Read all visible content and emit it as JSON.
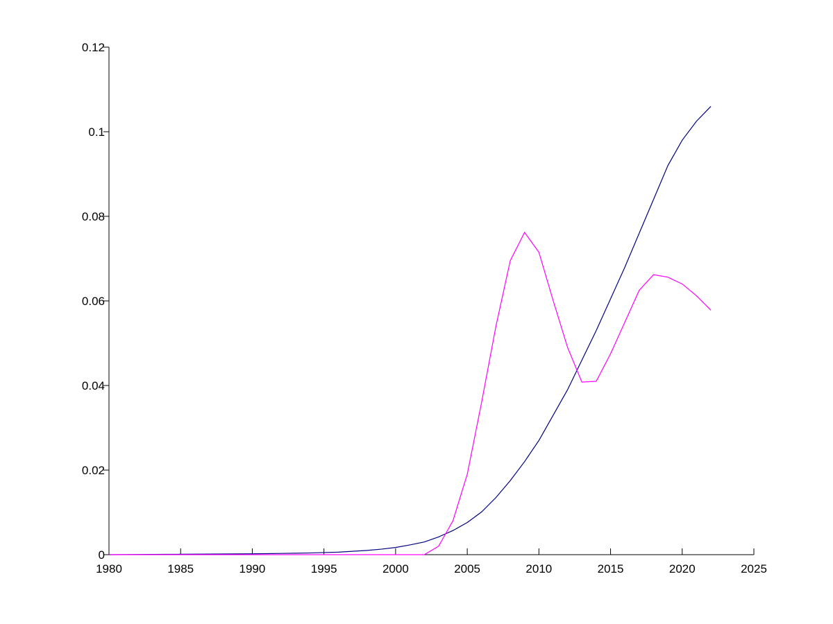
{
  "chart_data": {
    "type": "line",
    "x": [
      1980,
      1981,
      1982,
      1983,
      1984,
      1985,
      1986,
      1987,
      1988,
      1989,
      1990,
      1991,
      1992,
      1993,
      1994,
      1995,
      1996,
      1997,
      1998,
      1999,
      2000,
      2001,
      2002,
      2003,
      2004,
      2005,
      2006,
      2007,
      2008,
      2009,
      2010,
      2011,
      2012,
      2013,
      2014,
      2015,
      2016,
      2017,
      2018,
      2019,
      2020,
      2021,
      2022
    ],
    "series": [
      {
        "color": "#000080",
        "values": [
          0,
          2e-05,
          4e-05,
          6e-05,
          8e-05,
          0.0001,
          0.00012,
          0.00014,
          0.00016,
          0.00018,
          0.0002,
          0.00025,
          0.0003,
          0.00035,
          0.0004,
          0.0005,
          0.0006,
          0.0008,
          0.001,
          0.0013,
          0.0017,
          0.0023,
          0.003,
          0.0042,
          0.0057,
          0.0076,
          0.0101,
          0.0135,
          0.0175,
          0.022,
          0.027,
          0.033,
          0.039,
          0.046,
          0.053,
          0.0605,
          0.068,
          0.076,
          0.084,
          0.092,
          0.098,
          0.1025,
          0.106
        ]
      },
      {
        "color": "#ff00ff",
        "values": [
          0,
          0,
          0,
          0,
          0,
          0,
          0,
          0,
          0,
          0,
          0,
          0,
          0,
          0,
          0,
          0,
          0,
          0,
          0,
          0,
          0,
          0,
          0,
          0.002,
          0.008,
          0.019,
          0.036,
          0.054,
          0.0695,
          0.0762,
          0.0715,
          0.06,
          0.049,
          0.0408,
          0.041,
          0.0475,
          0.055,
          0.0625,
          0.0662,
          0.0656,
          0.064,
          0.0612,
          0.0578
        ]
      }
    ],
    "xlim": [
      1980,
      2025
    ],
    "xticks": [
      1980,
      1985,
      1990,
      1995,
      2000,
      2005,
      2010,
      2015,
      2020,
      2025
    ],
    "ylim": [
      0,
      0.12
    ],
    "yticks": [
      0,
      0.02,
      0.04,
      0.06,
      0.08,
      0.1,
      0.12
    ]
  }
}
